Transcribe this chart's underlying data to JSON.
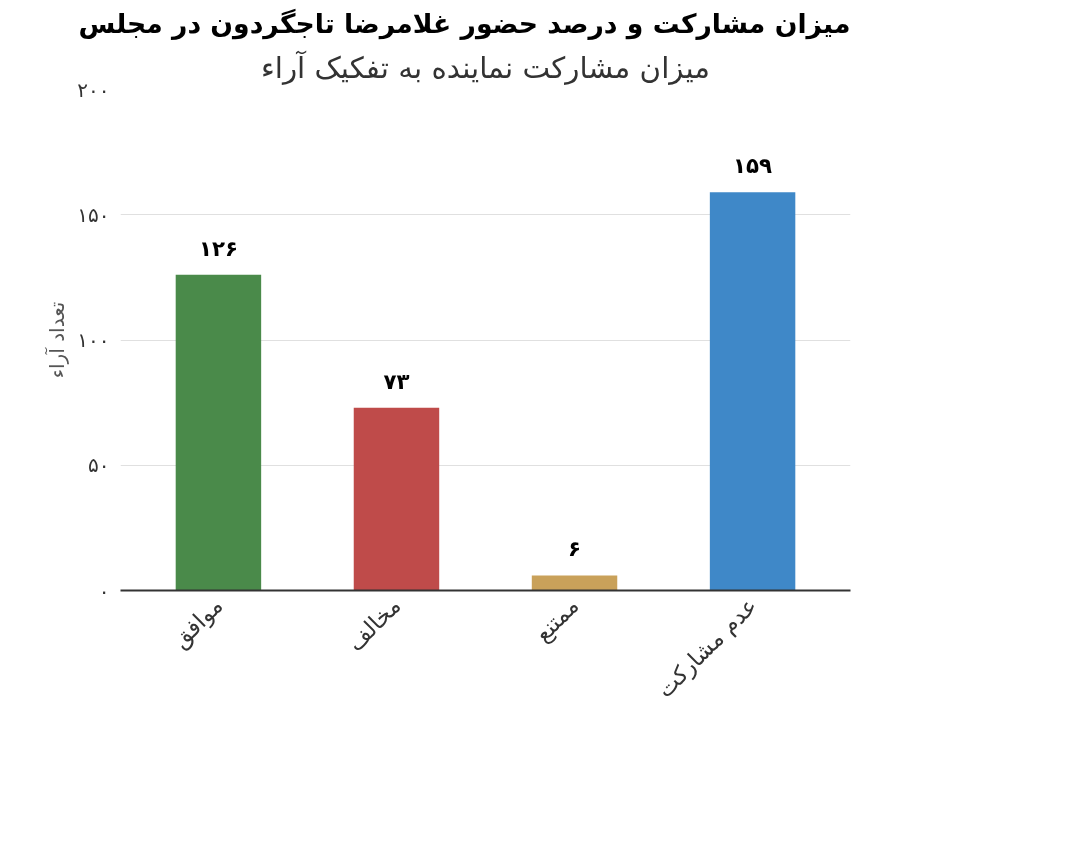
{
  "chart_data": {
    "type": "bar",
    "title": "میزان مشارکت و درصد حضور غلامرضا تاجگردون در مجلس",
    "subtitle": "میزان مشارکت نماینده به تفکیک آراء",
    "ylabel": "تعداد آراء",
    "categories": [
      "موافق",
      "مخالف",
      "ممتنع",
      "عدم مشارکت"
    ],
    "values": [
      126,
      73,
      6,
      159
    ],
    "colors": [
      "#4a8a4a",
      "#bf4b4a",
      "#c9a15a",
      "#3f88c8"
    ],
    "value_labels": [
      "۱۲۶",
      "۷۳",
      "۶",
      "۱۵۹"
    ],
    "ylim": [
      0,
      200
    ],
    "yticks": [
      {
        "value": 0,
        "label": "۰"
      },
      {
        "value": 50,
        "label": "۵۰"
      },
      {
        "value": 100,
        "label": "۱۰۰"
      },
      {
        "value": 150,
        "label": "۱۵۰"
      },
      {
        "value": 200,
        "label": "۲۰۰"
      }
    ],
    "grid": "y"
  }
}
